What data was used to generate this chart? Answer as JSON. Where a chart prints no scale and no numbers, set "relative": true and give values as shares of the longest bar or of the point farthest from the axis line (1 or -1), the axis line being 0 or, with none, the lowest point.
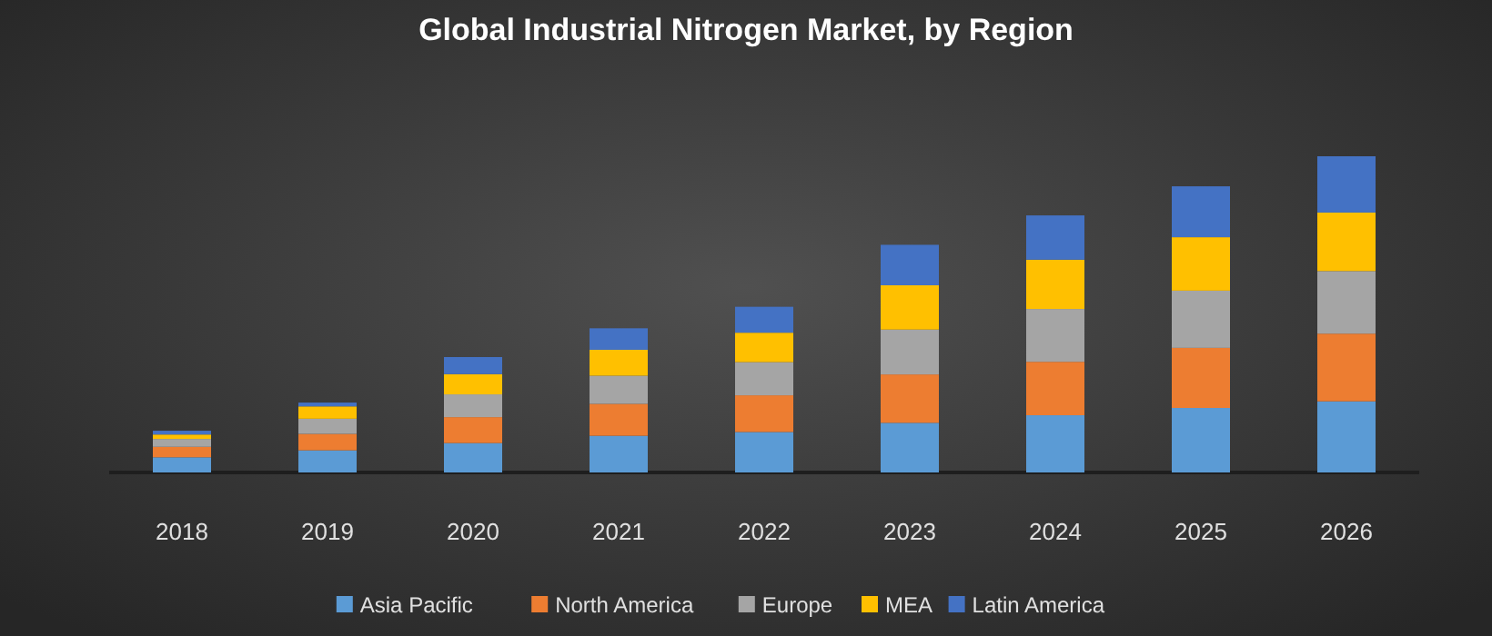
{
  "chart_data": {
    "type": "bar",
    "title": "Global Industrial Nitrogen Market, by Region",
    "relative": true,
    "stacked": true,
    "legend": "bottom",
    "categories": [
      "2018",
      "2019",
      "2020",
      "2021",
      "2022",
      "2023",
      "2024",
      "2025",
      "2026"
    ],
    "series": [
      {
        "name": "Asia Pacific",
        "color": "#5b9bd5",
        "values": [
          0.048,
          0.07,
          0.093,
          0.116,
          0.128,
          0.157,
          0.181,
          0.204,
          0.225
        ]
      },
      {
        "name": "North America",
        "color": "#ed7d31",
        "values": [
          0.033,
          0.052,
          0.082,
          0.101,
          0.116,
          0.153,
          0.169,
          0.19,
          0.214
        ]
      },
      {
        "name": "Europe",
        "color": "#a5a5a5",
        "values": [
          0.025,
          0.048,
          0.072,
          0.089,
          0.105,
          0.142,
          0.167,
          0.181,
          0.198
        ]
      },
      {
        "name": "MEA",
        "color": "#ffc000",
        "values": [
          0.014,
          0.039,
          0.064,
          0.082,
          0.093,
          0.14,
          0.156,
          0.169,
          0.185
        ]
      },
      {
        "name": "Latin America",
        "color": "#4472c4",
        "values": [
          0.012,
          0.012,
          0.054,
          0.068,
          0.082,
          0.128,
          0.14,
          0.161,
          0.178
        ]
      }
    ]
  }
}
